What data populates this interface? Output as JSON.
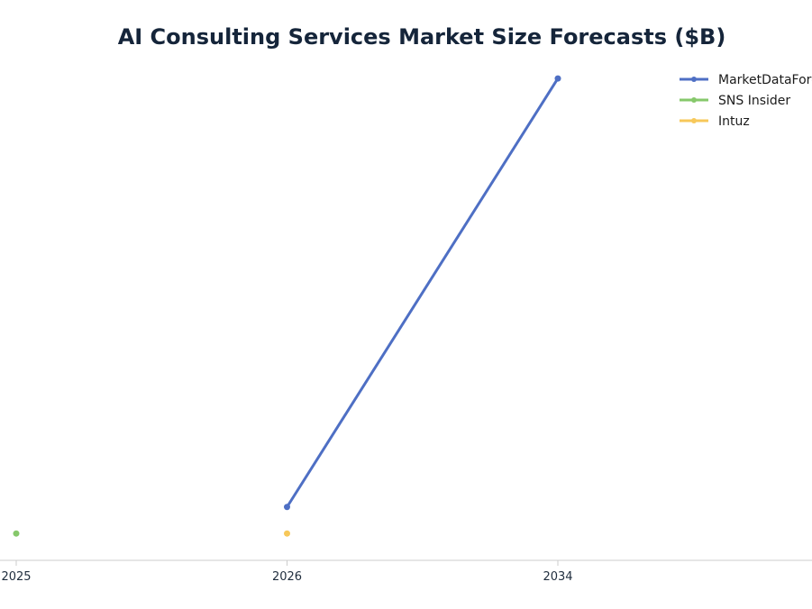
{
  "chart_data": {
    "type": "line",
    "title": "AI Consulting Services Market Size Forecasts ($B)",
    "xlabel": "",
    "ylabel": "",
    "categories": [
      "2025",
      "2026",
      "2034"
    ],
    "ylim": [
      0,
      91
    ],
    "grid": false,
    "legend_position": "top-right",
    "series": [
      {
        "name": "MarketDataForecast",
        "color": "#4e6fc4",
        "values": [
          null,
          11.05,
          90.99
        ]
      },
      {
        "name": "SNS Insider",
        "color": "#86c86b",
        "values": [
          6.1,
          null,
          null
        ]
      },
      {
        "name": "Intuz",
        "color": "#f7c85a",
        "values": [
          null,
          6.1,
          null
        ]
      }
    ]
  }
}
